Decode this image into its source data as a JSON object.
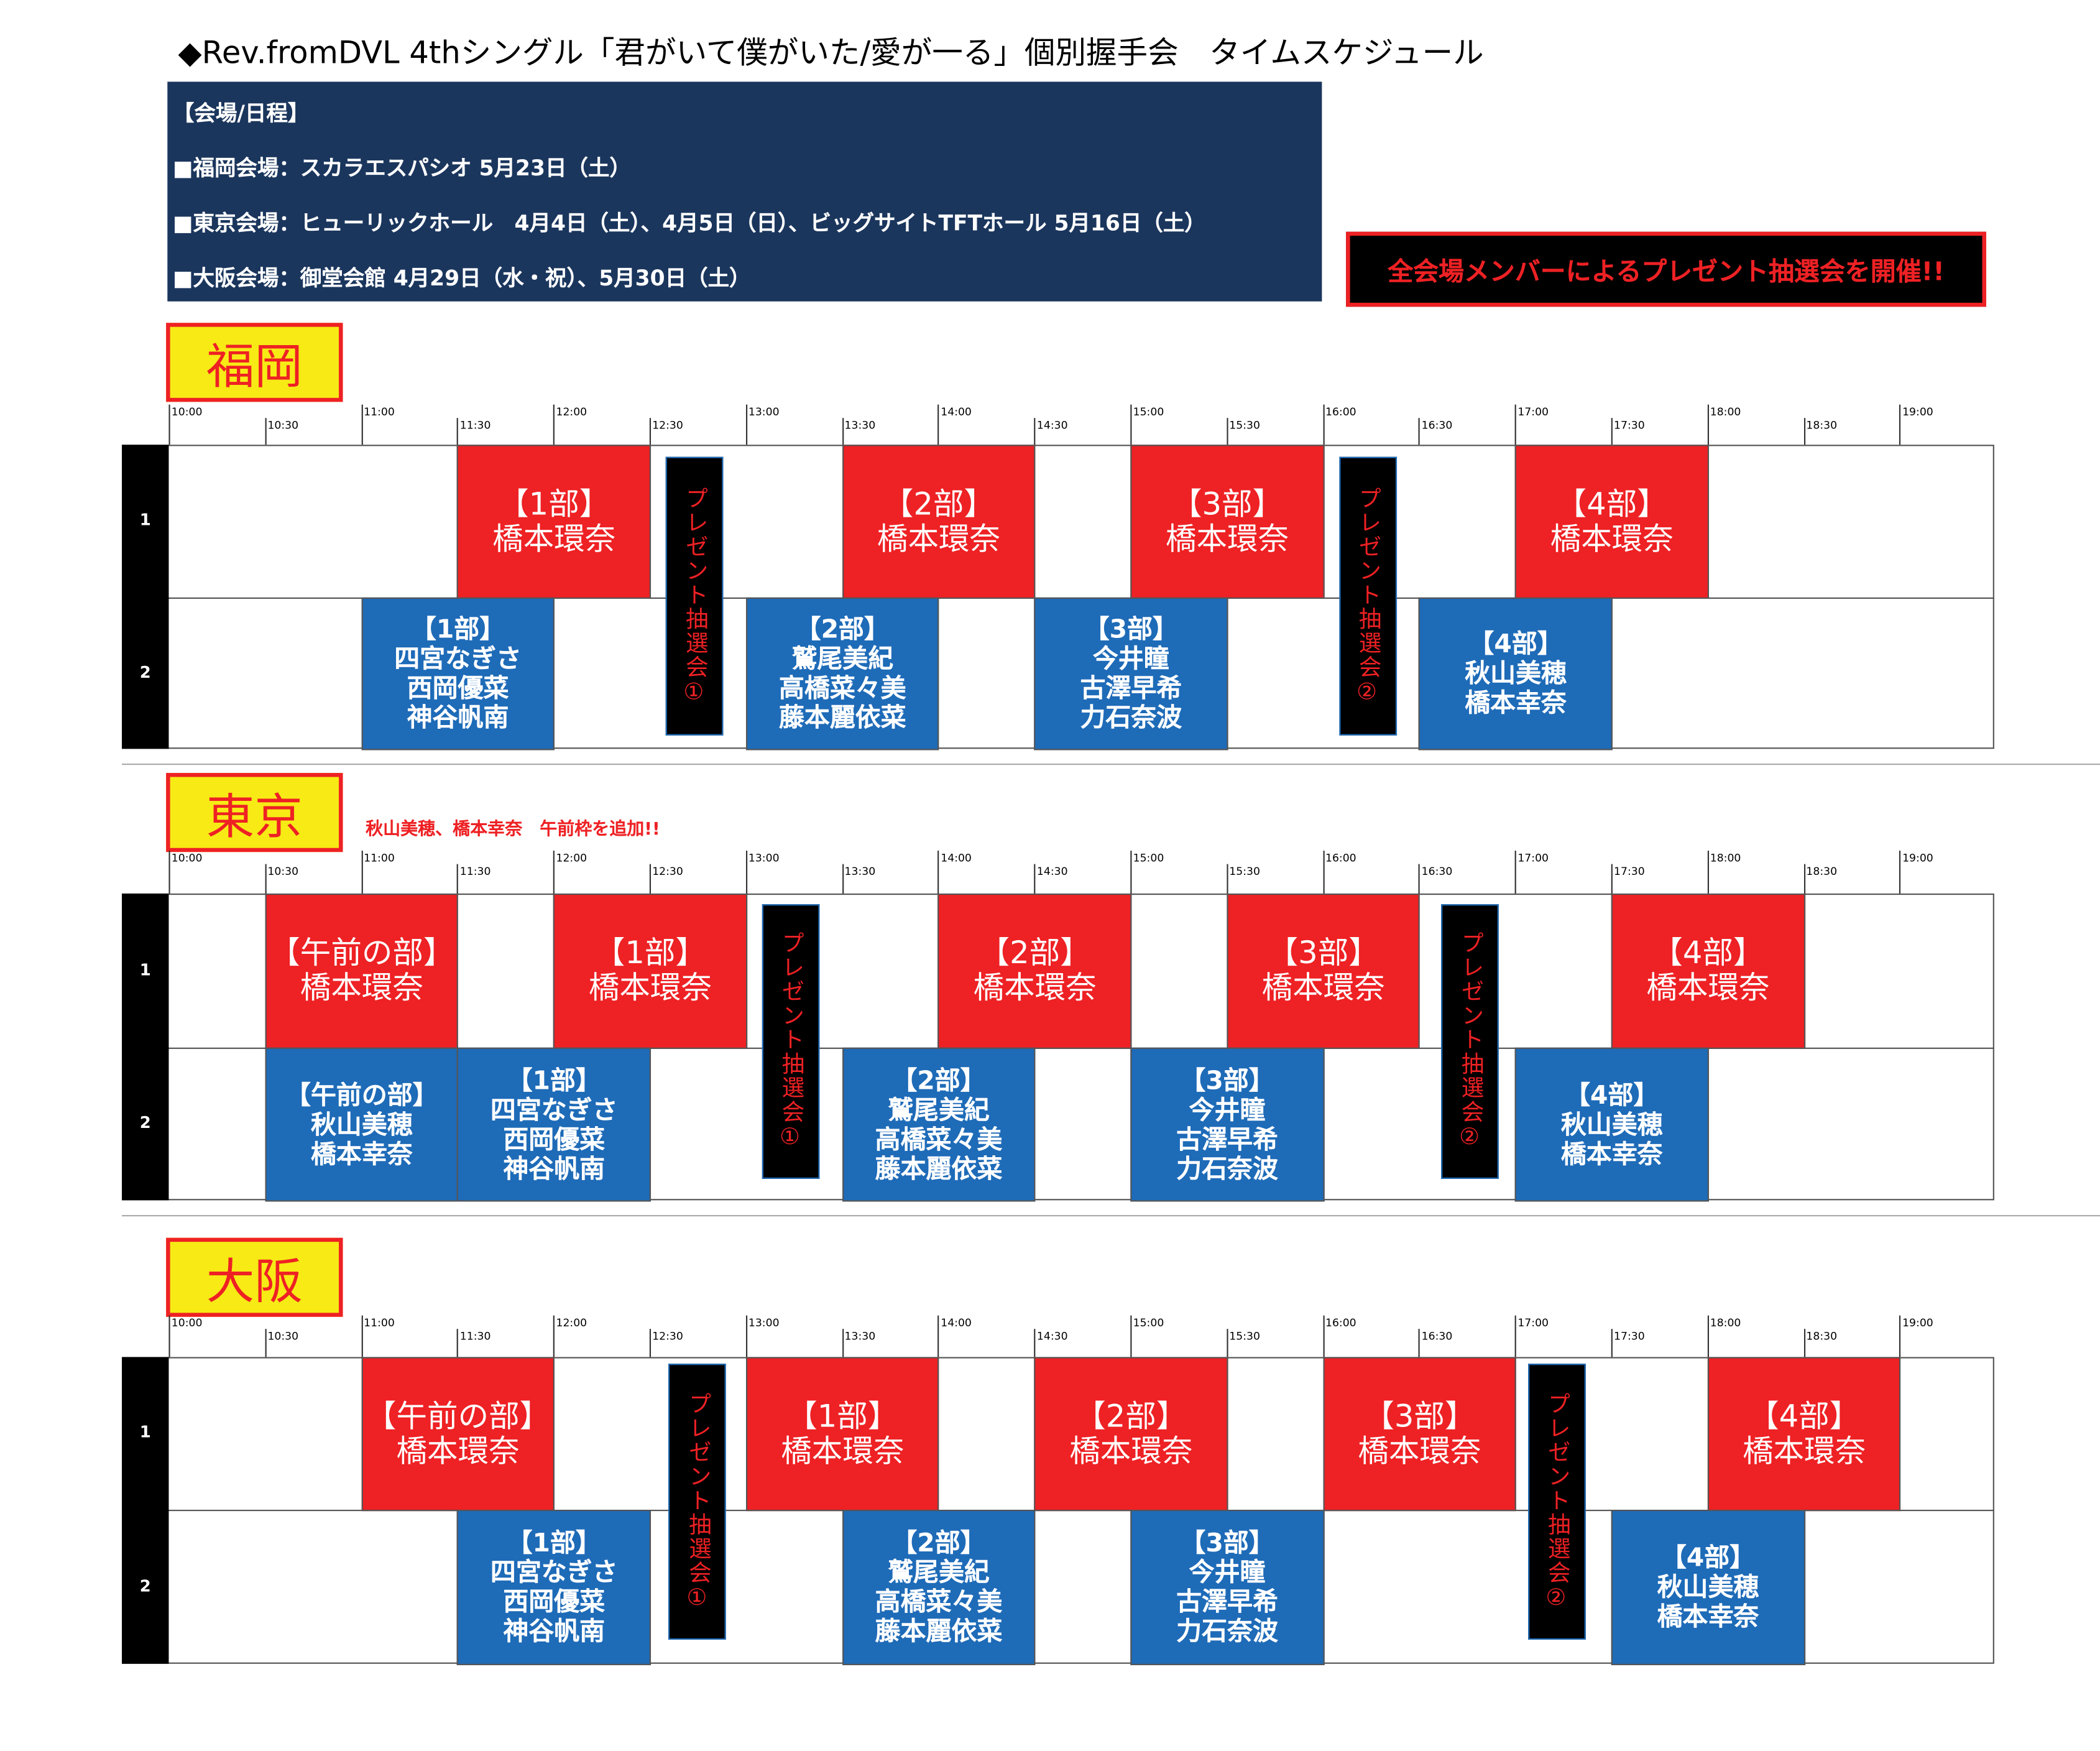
{
  "title": "◆Rev.fromDVL 4thシングル「君がいて僕がいた/愛が一る」個別握手会　タイムスケジュール",
  "info": {
    "heading": "【会場/日程】",
    "lines": [
      "■福岡会場：スカラエスパシオ 5月23日（土）",
      "■東京会場：ヒューリックホール　4月4日（土）、4月5日（日）、ビッグサイトTFTホール 5月16日（土）",
      "■大阪会場：御堂会館 4月29日（水・祝）、5月30日（土）"
    ]
  },
  "notice": "全会場メンバーによるプレゼント抽選会を開催!!",
  "colors": {
    "red": "#ee2124",
    "blue": "#1e6bb8",
    "navy": "#1b365d",
    "yellow": "#f7ea15"
  },
  "ticks": [
    "10:00",
    "10:30",
    "11:00",
    "11:30",
    "12:00",
    "12:30",
    "13:00",
    "13:30",
    "14:00",
    "14:30",
    "15:00",
    "15:30",
    "16:00",
    "16:30",
    "17:00",
    "17:30",
    "18:00",
    "18:30",
    "19:00"
  ],
  "row_labels": [
    "1",
    "2"
  ],
  "venues": [
    {
      "name": "福岡",
      "note": "",
      "row1": [
        {
          "start": "11:30",
          "end": "12:30",
          "lines": [
            "【1部】",
            "橋本環奈"
          ]
        },
        {
          "start": "13:30",
          "end": "14:30",
          "lines": [
            "【2部】",
            "橋本環奈"
          ]
        },
        {
          "start": "15:00",
          "end": "16:00",
          "lines": [
            "【3部】",
            "橋本環奈"
          ]
        },
        {
          "start": "17:00",
          "end": "18:00",
          "lines": [
            "【4部】",
            "橋本環奈"
          ]
        }
      ],
      "row2": [
        {
          "start": "11:00",
          "end": "12:00",
          "lines": [
            "【1部】",
            "四宮なぎさ",
            "西岡優菜",
            "神谷帆南"
          ]
        },
        {
          "start": "13:00",
          "end": "14:00",
          "lines": [
            "【2部】",
            "鷲尾美紀",
            "高橋菜々美",
            "藤本麗依菜"
          ]
        },
        {
          "start": "14:30",
          "end": "15:30",
          "lines": [
            "【3部】",
            "今井瞳",
            "古澤早希",
            "力石奈波"
          ]
        },
        {
          "start": "16:30",
          "end": "17:30",
          "lines": [
            "【4部】",
            "秋山美穂",
            "橋本幸奈"
          ]
        }
      ],
      "lottery": [
        {
          "at": "12:35",
          "label": "プレゼント抽選会①"
        },
        {
          "at": "16:05",
          "label": "プレゼント抽選会②"
        }
      ]
    },
    {
      "name": "東京",
      "note": "秋山美穂、橋本幸奈　午前枠を追加!!",
      "row1": [
        {
          "start": "10:30",
          "end": "11:30",
          "lines": [
            "【午前の部】",
            "橋本環奈"
          ]
        },
        {
          "start": "12:00",
          "end": "13:00",
          "lines": [
            "【1部】",
            "橋本環奈"
          ]
        },
        {
          "start": "14:00",
          "end": "15:00",
          "lines": [
            "【2部】",
            "橋本環奈"
          ]
        },
        {
          "start": "15:30",
          "end": "16:30",
          "lines": [
            "【3部】",
            "橋本環奈"
          ]
        },
        {
          "start": "17:30",
          "end": "18:30",
          "lines": [
            "【4部】",
            "橋本環奈"
          ]
        }
      ],
      "row2": [
        {
          "start": "10:30",
          "end": "11:30",
          "lines": [
            "【午前の部】",
            "秋山美穂",
            "橋本幸奈"
          ]
        },
        {
          "start": "11:30",
          "end": "12:30",
          "lines": [
            "【1部】",
            "四宮なぎさ",
            "西岡優菜",
            "神谷帆南"
          ]
        },
        {
          "start": "13:30",
          "end": "14:30",
          "lines": [
            "【2部】",
            "鷲尾美紀",
            "高橋菜々美",
            "藤本麗依菜"
          ]
        },
        {
          "start": "15:00",
          "end": "16:00",
          "lines": [
            "【3部】",
            "今井瞳",
            "古澤早希",
            "力石奈波"
          ]
        },
        {
          "start": "17:00",
          "end": "18:00",
          "lines": [
            "【4部】",
            "秋山美穂",
            "橋本幸奈"
          ]
        }
      ],
      "lottery": [
        {
          "at": "13:05",
          "label": "プレゼント抽選会①"
        },
        {
          "at": "16:37",
          "label": "プレゼント抽選会②"
        }
      ]
    },
    {
      "name": "大阪",
      "note": "",
      "row1": [
        {
          "start": "11:00",
          "end": "12:00",
          "lines": [
            "【午前の部】",
            "橋本環奈"
          ]
        },
        {
          "start": "13:00",
          "end": "14:00",
          "lines": [
            "【1部】",
            "橋本環奈"
          ]
        },
        {
          "start": "14:30",
          "end": "15:30",
          "lines": [
            "【2部】",
            "橋本環奈"
          ]
        },
        {
          "start": "16:00",
          "end": "17:00",
          "lines": [
            "【3部】",
            "橋本環奈"
          ]
        },
        {
          "start": "18:00",
          "end": "19:00",
          "lines": [
            "【4部】",
            "橋本環奈"
          ]
        }
      ],
      "row2": [
        {
          "start": "11:30",
          "end": "12:30",
          "lines": [
            "【1部】",
            "四宮なぎさ",
            "西岡優菜",
            "神谷帆南"
          ]
        },
        {
          "start": "13:30",
          "end": "14:30",
          "lines": [
            "【2部】",
            "鷲尾美紀",
            "高橋菜々美",
            "藤本麗依菜"
          ]
        },
        {
          "start": "15:00",
          "end": "16:00",
          "lines": [
            "【3部】",
            "今井瞳",
            "古澤早希",
            "力石奈波"
          ]
        },
        {
          "start": "17:30",
          "end": "18:30",
          "lines": [
            "【4部】",
            "秋山美穂",
            "橋本幸奈"
          ]
        }
      ],
      "lottery": [
        {
          "at": "12:36",
          "label": "プレゼント抽選会①"
        },
        {
          "at": "17:04",
          "label": "プレゼント抽選会②"
        }
      ]
    }
  ]
}
